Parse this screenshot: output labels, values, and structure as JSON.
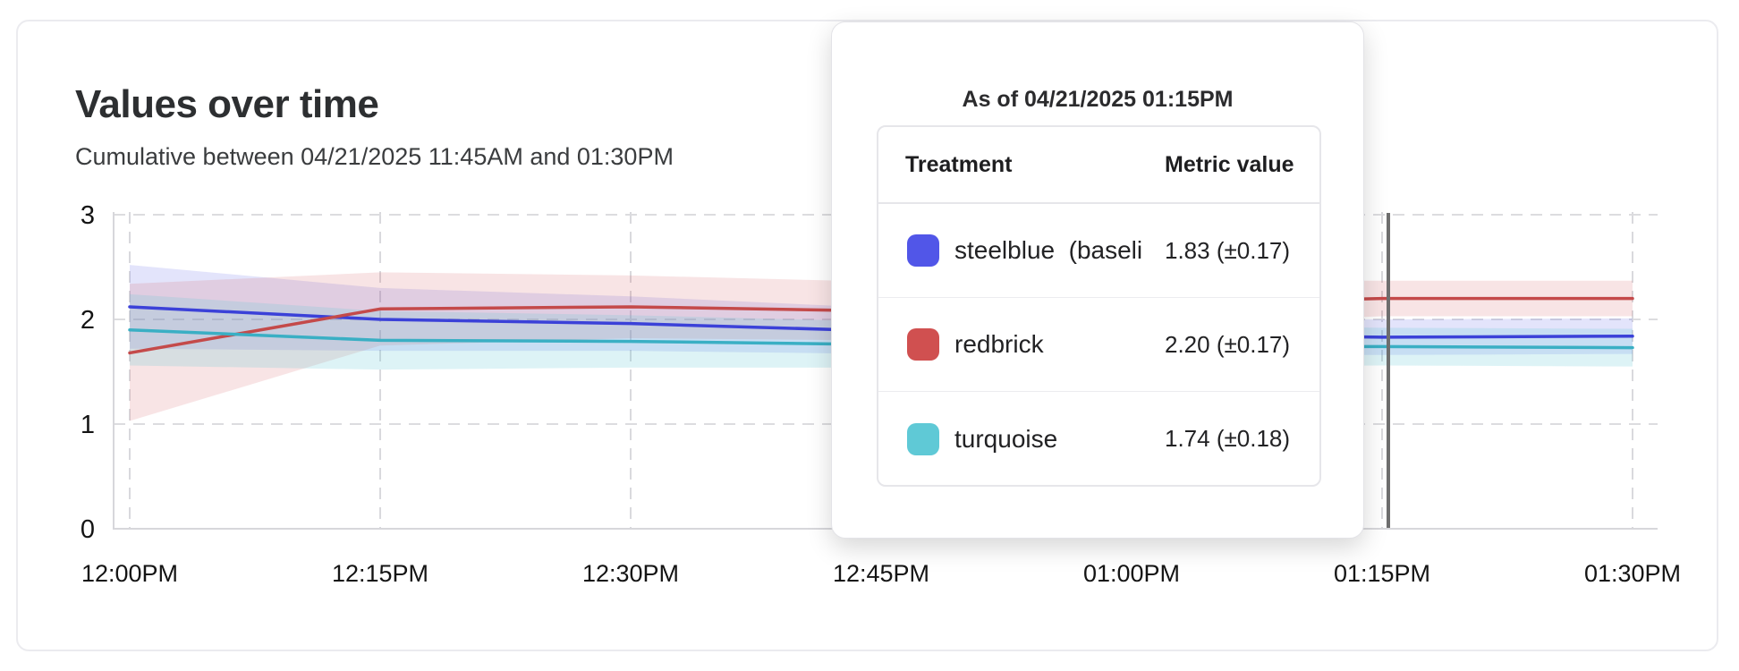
{
  "page": {
    "title": "Values over time",
    "subtitle": "Cumulative between 04/21/2025 11:45AM and 01:30PM"
  },
  "tooltip": {
    "as_of": "As of 04/21/2025 01:15PM",
    "columns": {
      "treatment": "Treatment",
      "metric": "Metric value"
    },
    "rows": [
      {
        "label": "steelblue  (baseli",
        "value": "1.83 (±0.17)",
        "color": "#5156e8"
      },
      {
        "label": "redbrick",
        "value": "2.20 (±0.17)",
        "color": "#d05050"
      },
      {
        "label": "turquoise",
        "value": "1.74 (±0.18)",
        "color": "#5fc9d6"
      }
    ]
  },
  "chart_data": {
    "type": "line",
    "title": "Values over time",
    "xlabel": "",
    "ylabel": "",
    "ylim": [
      0,
      3
    ],
    "y_ticks": [
      0,
      1,
      2,
      3
    ],
    "grid": "dashed",
    "legend_position": "none",
    "x_tick_labels": [
      "12:00PM",
      "12:15PM",
      "12:30PM",
      "12:45PM",
      "01:00PM",
      "01:15PM",
      "01:30PM"
    ],
    "crosshair_x_label": "01:15PM",
    "series": [
      {
        "name": "steelblue (baseline)",
        "color": "#3b41d8",
        "band_color": "rgba(80,88,232,0.16)",
        "values": [
          2.12,
          2.0,
          1.96,
          1.89,
          1.86,
          1.83,
          1.84
        ],
        "upper": [
          2.52,
          2.3,
          2.22,
          2.11,
          2.02,
          2.0,
          2.01
        ],
        "lower": [
          1.72,
          1.7,
          1.7,
          1.67,
          1.66,
          1.66,
          1.67
        ]
      },
      {
        "name": "redbrick",
        "color": "#c44a4a",
        "band_color": "rgba(214,90,96,0.16)",
        "values": [
          1.68,
          2.1,
          2.12,
          2.08,
          2.14,
          2.2,
          2.2
        ],
        "upper": [
          2.34,
          2.45,
          2.42,
          2.36,
          2.36,
          2.37,
          2.37
        ],
        "lower": [
          1.03,
          1.75,
          1.82,
          1.8,
          1.95,
          2.03,
          2.03
        ]
      },
      {
        "name": "turquoise",
        "color": "#3aafc4",
        "band_color": "rgba(102,200,216,0.22)",
        "values": [
          1.9,
          1.8,
          1.79,
          1.76,
          1.75,
          1.74,
          1.73
        ],
        "upper": [
          2.24,
          2.08,
          2.04,
          1.98,
          1.94,
          1.92,
          1.91
        ],
        "lower": [
          1.56,
          1.52,
          1.54,
          1.54,
          1.55,
          1.56,
          1.55
        ]
      }
    ]
  }
}
